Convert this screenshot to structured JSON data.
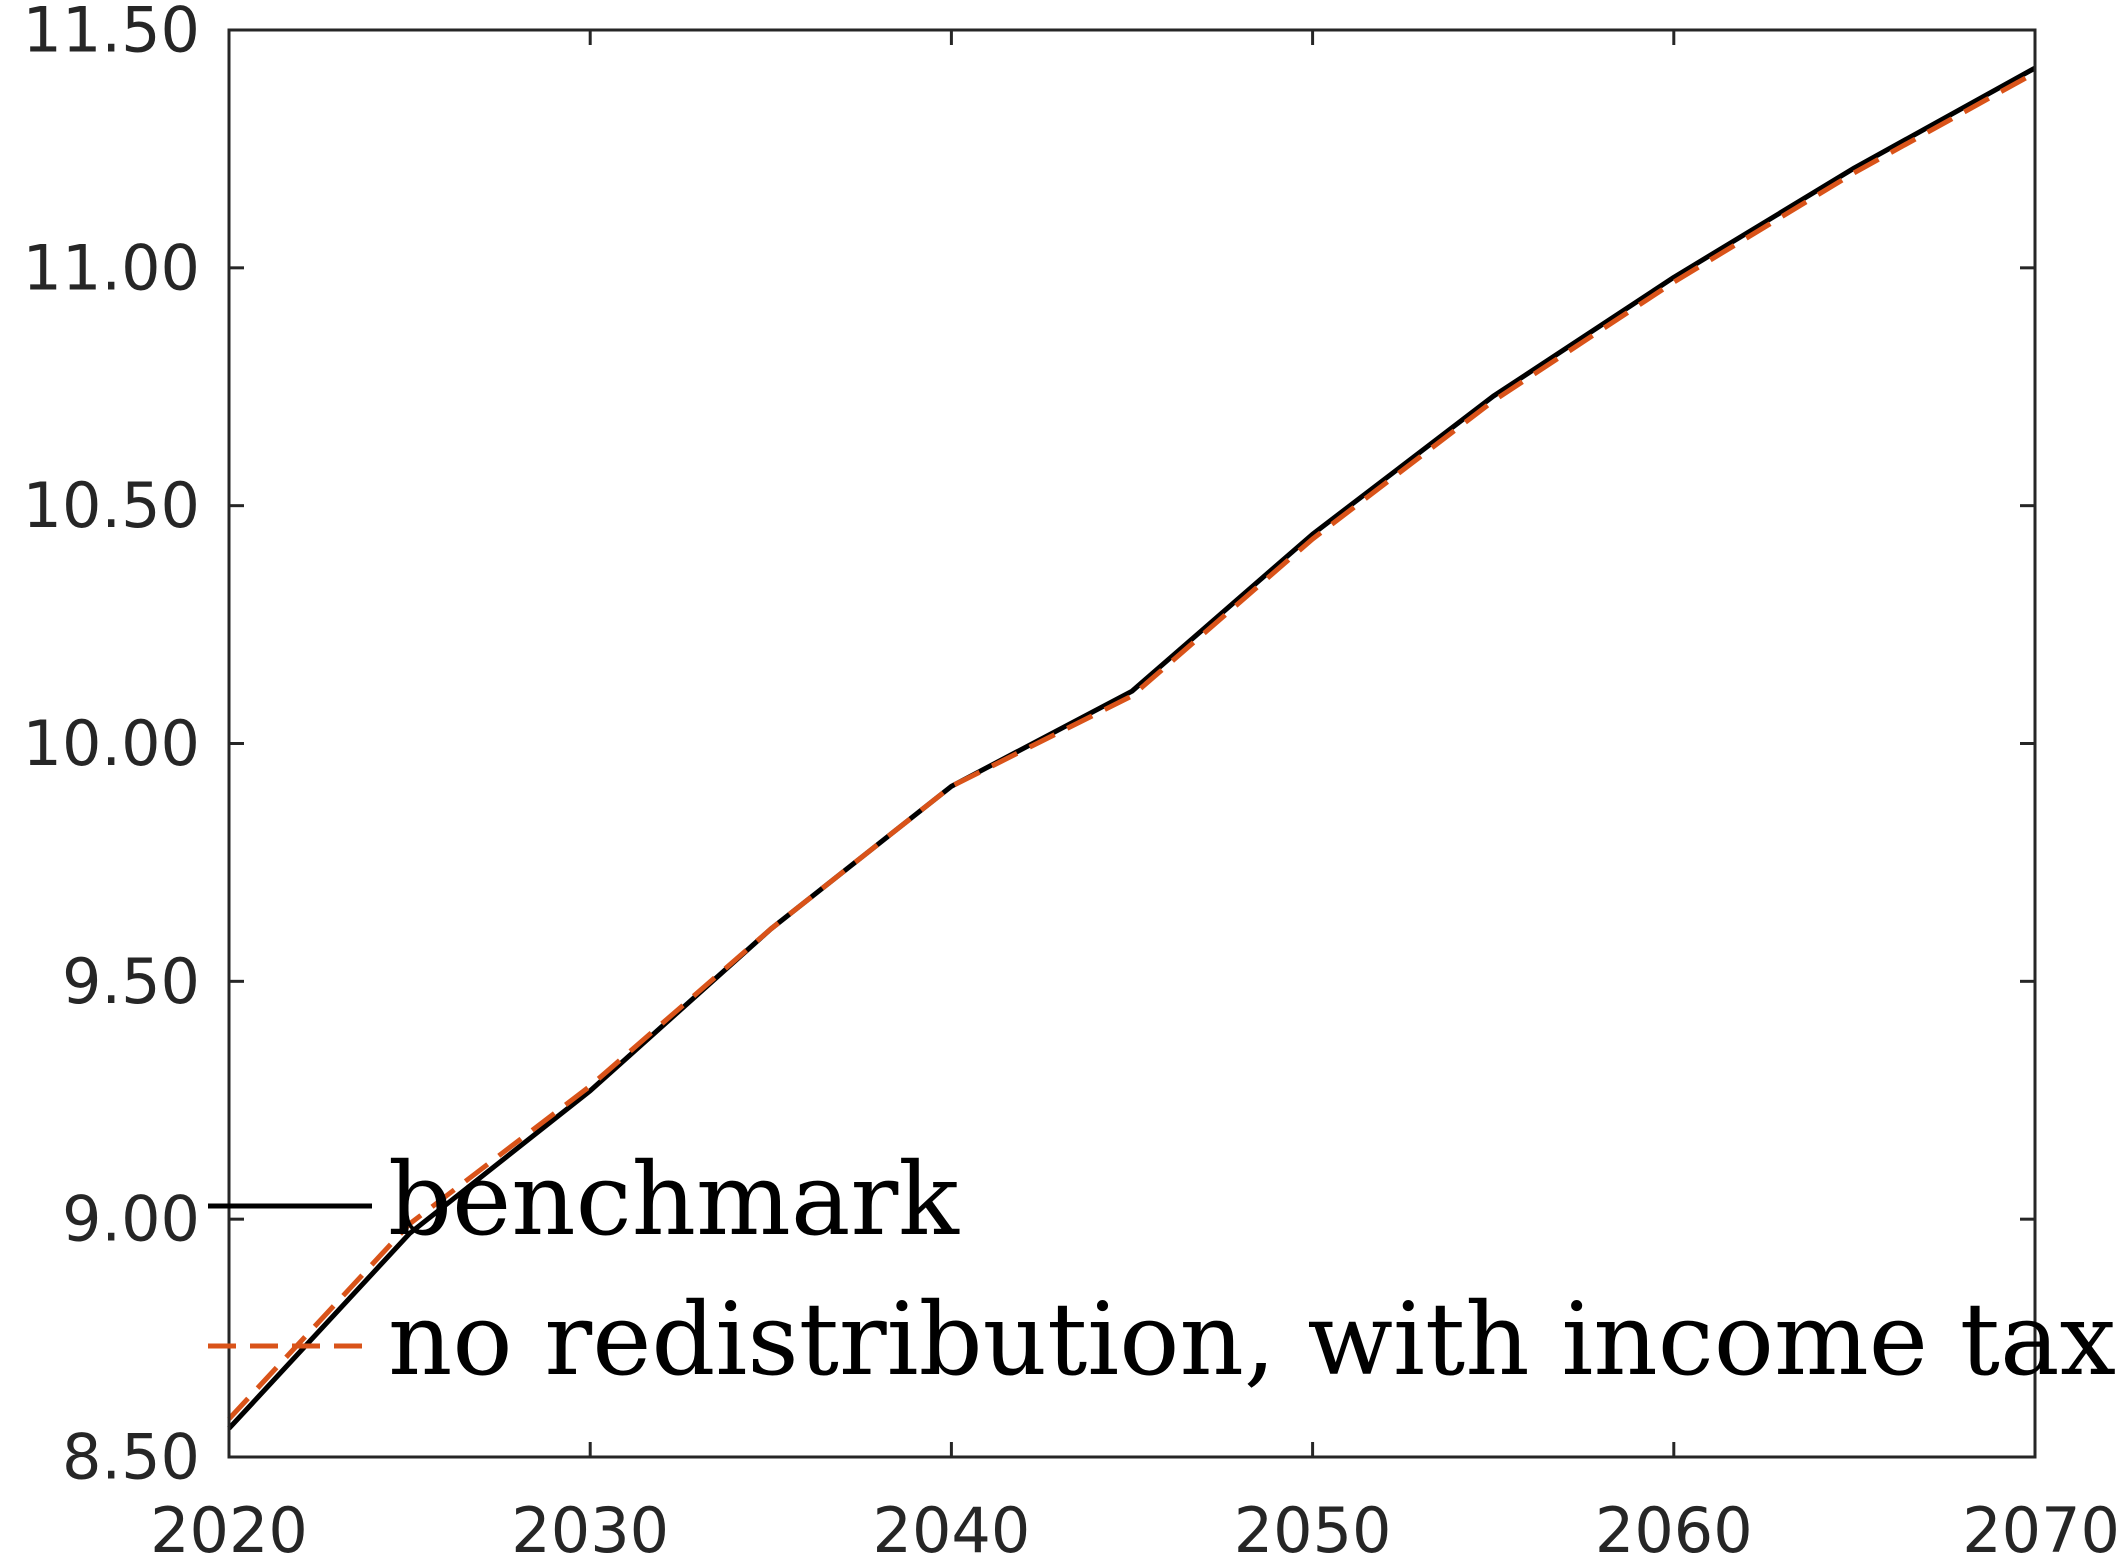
{
  "chart_data": {
    "type": "line",
    "title": "",
    "xlabel": "",
    "ylabel": "",
    "xlim": [
      2020,
      2070
    ],
    "ylim": [
      8.5,
      11.5
    ],
    "xticks": [
      2020,
      2030,
      2040,
      2050,
      2060,
      2070
    ],
    "xtick_labels": [
      "2020",
      "2030",
      "2040",
      "2050",
      "2060",
      "2070"
    ],
    "yticks": [
      8.5,
      9.0,
      9.5,
      10.0,
      10.5,
      11.0,
      11.5
    ],
    "ytick_labels": [
      "8.50",
      "9.00",
      "9.50",
      "10.00",
      "10.50",
      "11.00",
      "11.50"
    ],
    "grid": false,
    "legend_position": "bottom-left",
    "x": [
      2020,
      2025,
      2030,
      2035,
      2040,
      2045,
      2050,
      2055,
      2060,
      2065,
      2070
    ],
    "series": [
      {
        "name": "benchmark",
        "color": "#000000",
        "style": "solid",
        "values": [
          8.56,
          8.97,
          9.27,
          9.61,
          9.91,
          10.11,
          10.44,
          10.73,
          10.98,
          11.21,
          11.42
        ]
      },
      {
        "name": "no redistribution, with income tax",
        "color": "#D95319",
        "style": "dashed",
        "values": [
          8.58,
          8.99,
          9.28,
          9.61,
          9.91,
          10.1,
          10.43,
          10.72,
          10.97,
          11.2,
          11.41
        ]
      }
    ]
  }
}
